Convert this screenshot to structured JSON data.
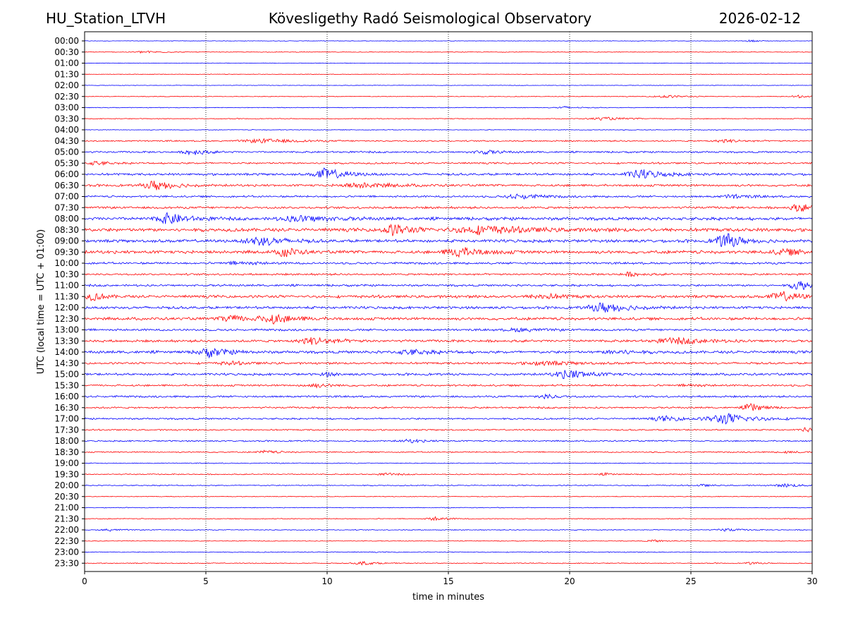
{
  "header": {
    "station": "HU_Station_LTVH",
    "title": "Kövesligethy Radó Seismological Observatory",
    "date": "2026-02-12"
  },
  "chart_data": {
    "type": "line",
    "subtype": "helicorder",
    "xlabel": "time in minutes",
    "ylabel": "UTC (local time = UTC + 01:00)",
    "xlim": [
      0,
      30
    ],
    "xticks": [
      "0",
      "5",
      "10",
      "15",
      "20",
      "25",
      "30"
    ],
    "x_gridlines": [
      5,
      10,
      15,
      20,
      25
    ],
    "grid": "vertical-dotted",
    "colors": {
      "full_hour": "#0000ff",
      "half_hour": "#ff0000",
      "grid": "#000000"
    },
    "rows": [
      "00:00",
      "00:30",
      "01:00",
      "01:30",
      "02:00",
      "02:30",
      "03:00",
      "03:30",
      "04:00",
      "04:30",
      "05:00",
      "05:30",
      "06:00",
      "06:30",
      "07:00",
      "07:30",
      "08:00",
      "08:30",
      "09:00",
      "09:30",
      "10:00",
      "10:30",
      "11:00",
      "11:30",
      "12:00",
      "12:30",
      "13:00",
      "13:30",
      "14:00",
      "14:30",
      "15:00",
      "15:30",
      "16:00",
      "16:30",
      "17:00",
      "17:30",
      "18:00",
      "18:30",
      "19:00",
      "19:30",
      "20:00",
      "20:30",
      "21:00",
      "21:30",
      "22:00",
      "22:30",
      "23:00",
      "23:30"
    ],
    "noise_level": [
      0.3,
      0.4,
      0.3,
      0.3,
      0.3,
      0.4,
      0.4,
      0.5,
      0.4,
      0.8,
      1.0,
      1.0,
      1.3,
      1.3,
      1.1,
      1.3,
      1.8,
      2.0,
      1.7,
      1.8,
      1.2,
      1.1,
      1.2,
      1.6,
      1.5,
      1.6,
      1.2,
      1.4,
      1.6,
      1.2,
      1.3,
      1.1,
      1.1,
      1.0,
      1.0,
      0.8,
      0.8,
      0.7,
      0.5,
      0.6,
      0.6,
      0.4,
      0.4,
      0.5,
      0.5,
      0.4,
      0.5,
      0.5
    ],
    "bursts": [
      {
        "row": 0,
        "t": 27.5,
        "amp": 1.2,
        "dur": 0.4
      },
      {
        "row": 1,
        "t": 2.5,
        "amp": 1.5,
        "dur": 0.8
      },
      {
        "row": 5,
        "t": 24.0,
        "amp": 2.0,
        "dur": 0.8
      },
      {
        "row": 5,
        "t": 29.5,
        "amp": 1.5,
        "dur": 0.5
      },
      {
        "row": 6,
        "t": 19.8,
        "amp": 1.5,
        "dur": 0.6
      },
      {
        "row": 7,
        "t": 21.5,
        "amp": 1.8,
        "dur": 1.0
      },
      {
        "row": 9,
        "t": 7.5,
        "amp": 2.5,
        "dur": 1.5
      },
      {
        "row": 9,
        "t": 26.5,
        "amp": 2.0,
        "dur": 0.8
      },
      {
        "row": 10,
        "t": 4.5,
        "amp": 4.0,
        "dur": 0.6
      },
      {
        "row": 10,
        "t": 16.5,
        "amp": 2.5,
        "dur": 0.8
      },
      {
        "row": 11,
        "t": 0.5,
        "amp": 2.5,
        "dur": 0.6
      },
      {
        "row": 12,
        "t": 10.0,
        "amp": 8.0,
        "dur": 0.8
      },
      {
        "row": 12,
        "t": 23.0,
        "amp": 6.0,
        "dur": 1.0
      },
      {
        "row": 13,
        "t": 3.0,
        "amp": 7.0,
        "dur": 0.8
      },
      {
        "row": 13,
        "t": 11.5,
        "amp": 3.0,
        "dur": 1.5
      },
      {
        "row": 14,
        "t": 18.0,
        "amp": 3.0,
        "dur": 1.0
      },
      {
        "row": 14,
        "t": 26.8,
        "amp": 2.5,
        "dur": 0.8
      },
      {
        "row": 15,
        "t": 29.5,
        "amp": 5.0,
        "dur": 0.6
      },
      {
        "row": 16,
        "t": 3.5,
        "amp": 7.0,
        "dur": 0.8
      },
      {
        "row": 16,
        "t": 9.0,
        "amp": 3.5,
        "dur": 1.5
      },
      {
        "row": 17,
        "t": 12.8,
        "amp": 7.0,
        "dur": 0.8
      },
      {
        "row": 17,
        "t": 16.5,
        "amp": 5.0,
        "dur": 2.0
      },
      {
        "row": 18,
        "t": 7.3,
        "amp": 6.0,
        "dur": 1.0
      },
      {
        "row": 18,
        "t": 26.5,
        "amp": 9.0,
        "dur": 0.8
      },
      {
        "row": 19,
        "t": 8.3,
        "amp": 7.0,
        "dur": 0.5
      },
      {
        "row": 19,
        "t": 15.5,
        "amp": 6.0,
        "dur": 1.0
      },
      {
        "row": 19,
        "t": 29.0,
        "amp": 3.5,
        "dur": 1.0
      },
      {
        "row": 20,
        "t": 6.5,
        "amp": 2.0,
        "dur": 1.0
      },
      {
        "row": 21,
        "t": 22.5,
        "amp": 2.5,
        "dur": 0.6
      },
      {
        "row": 22,
        "t": 29.5,
        "amp": 7.0,
        "dur": 0.6
      },
      {
        "row": 23,
        "t": 0.4,
        "amp": 5.0,
        "dur": 0.5
      },
      {
        "row": 23,
        "t": 19.0,
        "amp": 3.0,
        "dur": 1.0
      },
      {
        "row": 23,
        "t": 28.8,
        "amp": 6.0,
        "dur": 0.8
      },
      {
        "row": 24,
        "t": 21.5,
        "amp": 7.0,
        "dur": 1.0
      },
      {
        "row": 25,
        "t": 6.0,
        "amp": 6.0,
        "dur": 0.6
      },
      {
        "row": 25,
        "t": 7.8,
        "amp": 6.0,
        "dur": 1.0
      },
      {
        "row": 26,
        "t": 18.0,
        "amp": 2.0,
        "dur": 1.0
      },
      {
        "row": 27,
        "t": 9.5,
        "amp": 5.0,
        "dur": 1.0
      },
      {
        "row": 27,
        "t": 24.5,
        "amp": 3.5,
        "dur": 1.5
      },
      {
        "row": 28,
        "t": 5.2,
        "amp": 6.0,
        "dur": 0.8
      },
      {
        "row": 28,
        "t": 13.5,
        "amp": 3.0,
        "dur": 1.0
      },
      {
        "row": 28,
        "t": 22.0,
        "amp": 3.0,
        "dur": 0.8
      },
      {
        "row": 29,
        "t": 6.0,
        "amp": 2.0,
        "dur": 0.8
      },
      {
        "row": 29,
        "t": 19.0,
        "amp": 2.5,
        "dur": 1.5
      },
      {
        "row": 30,
        "t": 20.0,
        "amp": 6.0,
        "dur": 1.0
      },
      {
        "row": 30,
        "t": 10.0,
        "amp": 2.5,
        "dur": 0.4
      },
      {
        "row": 31,
        "t": 9.5,
        "amp": 2.5,
        "dur": 0.8
      },
      {
        "row": 31,
        "t": 25.0,
        "amp": 2.0,
        "dur": 0.5
      },
      {
        "row": 32,
        "t": 19.0,
        "amp": 3.0,
        "dur": 0.6
      },
      {
        "row": 33,
        "t": 27.5,
        "amp": 6.0,
        "dur": 0.5
      },
      {
        "row": 34,
        "t": 24.0,
        "amp": 3.0,
        "dur": 1.0
      },
      {
        "row": 34,
        "t": 26.5,
        "amp": 7.0,
        "dur": 1.2
      },
      {
        "row": 35,
        "t": 29.8,
        "amp": 3.0,
        "dur": 0.4
      },
      {
        "row": 36,
        "t": 13.5,
        "amp": 2.0,
        "dur": 0.8
      },
      {
        "row": 37,
        "t": 7.5,
        "amp": 2.0,
        "dur": 0.6
      },
      {
        "row": 37,
        "t": 29.0,
        "amp": 1.5,
        "dur": 0.5
      },
      {
        "row": 39,
        "t": 12.5,
        "amp": 1.5,
        "dur": 0.6
      },
      {
        "row": 39,
        "t": 21.5,
        "amp": 1.5,
        "dur": 0.4
      },
      {
        "row": 40,
        "t": 29.0,
        "amp": 2.0,
        "dur": 0.8
      },
      {
        "row": 40,
        "t": 25.5,
        "amp": 1.5,
        "dur": 0.4
      },
      {
        "row": 43,
        "t": 14.5,
        "amp": 2.5,
        "dur": 0.6
      },
      {
        "row": 44,
        "t": 1.0,
        "amp": 1.5,
        "dur": 0.5
      },
      {
        "row": 44,
        "t": 26.5,
        "amp": 2.0,
        "dur": 0.6
      },
      {
        "row": 45,
        "t": 23.5,
        "amp": 1.5,
        "dur": 0.5
      },
      {
        "row": 47,
        "t": 11.5,
        "amp": 2.5,
        "dur": 0.6
      },
      {
        "row": 47,
        "t": 27.5,
        "amp": 1.5,
        "dur": 0.4
      }
    ]
  }
}
